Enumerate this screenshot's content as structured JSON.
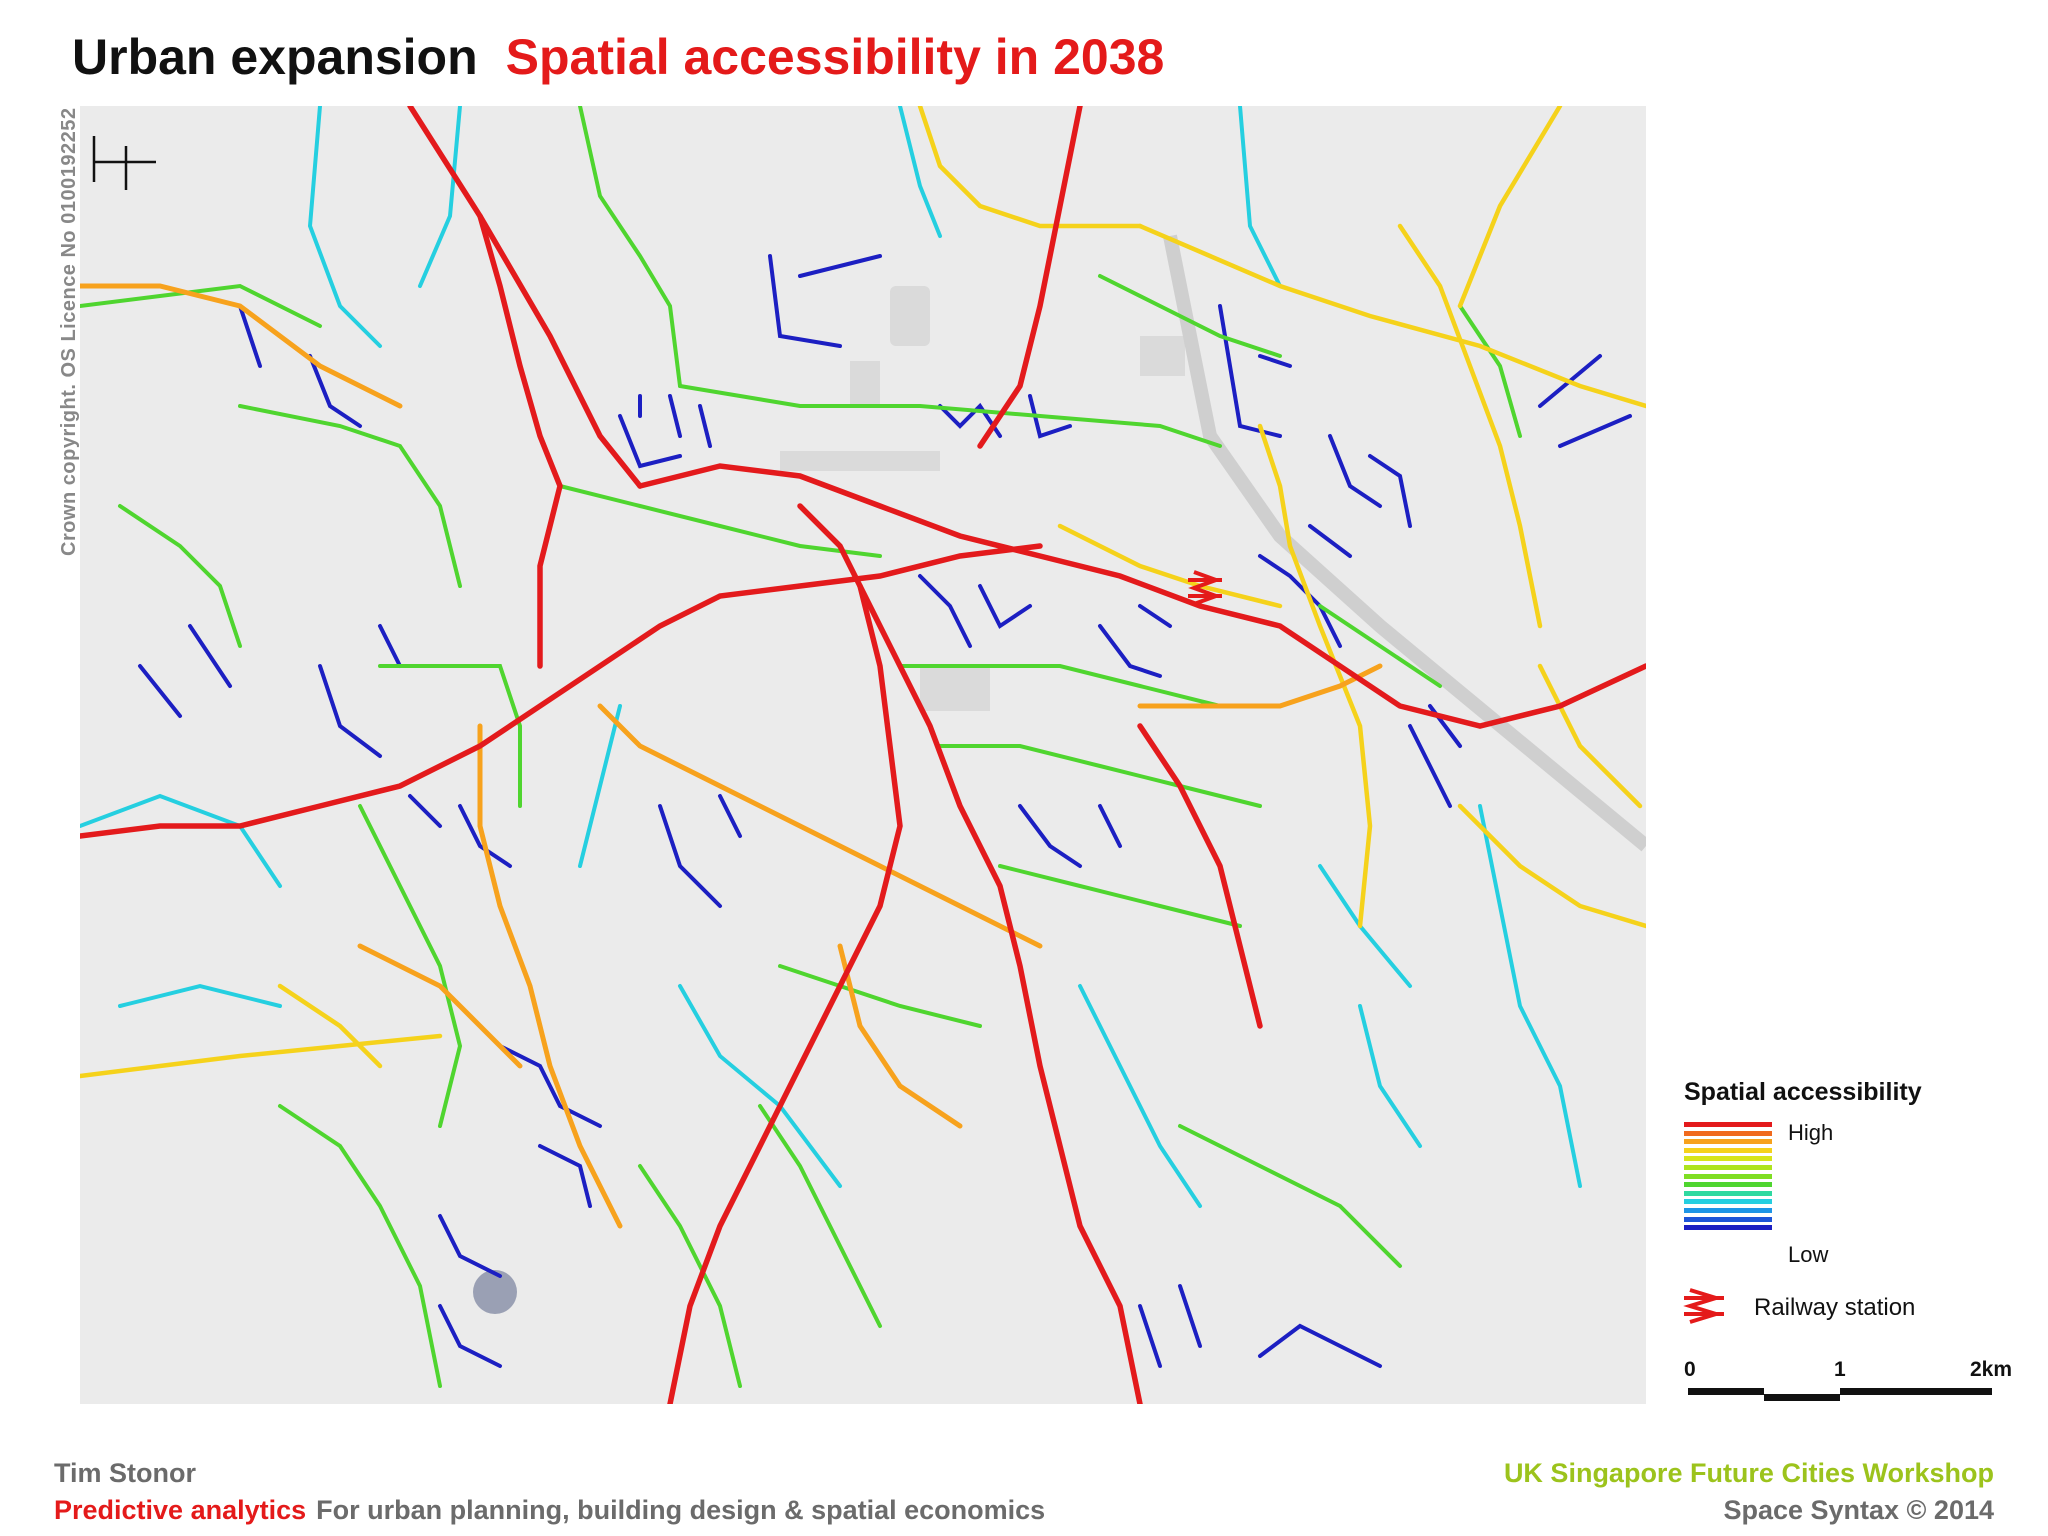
{
  "header": {
    "title_main": "Urban expansion",
    "title_highlight": "Spatial accessibility in 2038"
  },
  "copyright": "Crown copyright. OS Licence No 0100192252",
  "map": {
    "north_arrow_icon": "north-arrow-icon",
    "railway_station_icon": "railway-station-icon"
  },
  "legend": {
    "title": "Spatial  accessibility",
    "high_label": "High",
    "low_label": "Low",
    "ramp_colors": [
      "#e31a1c",
      "#f06a1e",
      "#f7a21d",
      "#f5d21b",
      "#d7e51a",
      "#aee41e",
      "#7fde23",
      "#4fd52f",
      "#2fd9a0",
      "#25cfe0",
      "#1e95e6",
      "#1d55d8",
      "#1c1fc2"
    ],
    "railway_label": "Railway station",
    "scale_labels": [
      "0",
      "1",
      "2km"
    ]
  },
  "footer": {
    "author": "Tim Stonor",
    "tagline_red": "Predictive analytics",
    "tagline_grey": "For urban planning, building design & spatial economics",
    "workshop": "UK Singapore Future Cities Workshop",
    "copyright_line": "Space Syntax ©  2014"
  },
  "colors": {
    "title_red": "#e41a1a",
    "workshop_green": "#9cc31c",
    "high": "#e31a1c",
    "low": "#1c1fc2"
  }
}
